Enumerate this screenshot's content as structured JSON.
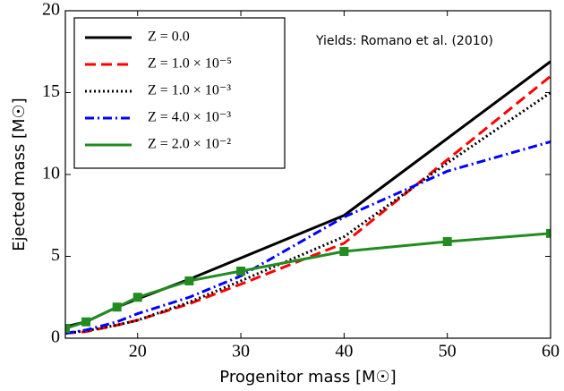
{
  "chart_data": {
    "type": "line",
    "x_label": "Progenitor mass [M☉]",
    "y_label": "Ejected mass [M☉]",
    "annotation": "Yields: Romano et al. (2010)",
    "x": [
      13,
      15,
      18,
      20,
      25,
      30,
      40,
      50,
      60
    ],
    "series": [
      {
        "name": "Z = 0.0",
        "color": "#000000",
        "style": "solid",
        "values": [
          0.7,
          1.0,
          1.9,
          2.4,
          3.6,
          4.9,
          7.5,
          12.2,
          16.9
        ]
      },
      {
        "name": "Z = 1.0 × 10⁻⁵",
        "color": "#ff0000",
        "style": "dashed",
        "values": [
          0.3,
          0.4,
          0.8,
          1.1,
          2.1,
          3.3,
          5.8,
          10.9,
          16.0
        ]
      },
      {
        "name": "Z = 1.0 × 10⁻³",
        "color": "#000000",
        "style": "dotted",
        "values": [
          0.3,
          0.45,
          0.8,
          1.1,
          2.2,
          3.5,
          6.2,
          10.7,
          15.0
        ]
      },
      {
        "name": "Z = 4.0 × 10⁻³",
        "color": "#0000ff",
        "style": "dashdot",
        "values": [
          0.3,
          0.5,
          1.0,
          1.5,
          2.5,
          3.8,
          7.4,
          10.2,
          12.0
        ]
      },
      {
        "name": "Z = 2.0 × 10⁻²",
        "color": "#228b22",
        "style": "solid",
        "marker": "square",
        "values": [
          0.6,
          1.0,
          1.9,
          2.5,
          3.5,
          4.1,
          5.3,
          5.9,
          6.4
        ]
      }
    ],
    "xlim": [
      13,
      60
    ],
    "ylim": [
      0,
      20
    ],
    "xticks": [
      20,
      30,
      40,
      50,
      60
    ],
    "yticks": [
      0,
      5,
      10,
      15,
      20
    ],
    "grid": false,
    "legend": "upper left"
  }
}
